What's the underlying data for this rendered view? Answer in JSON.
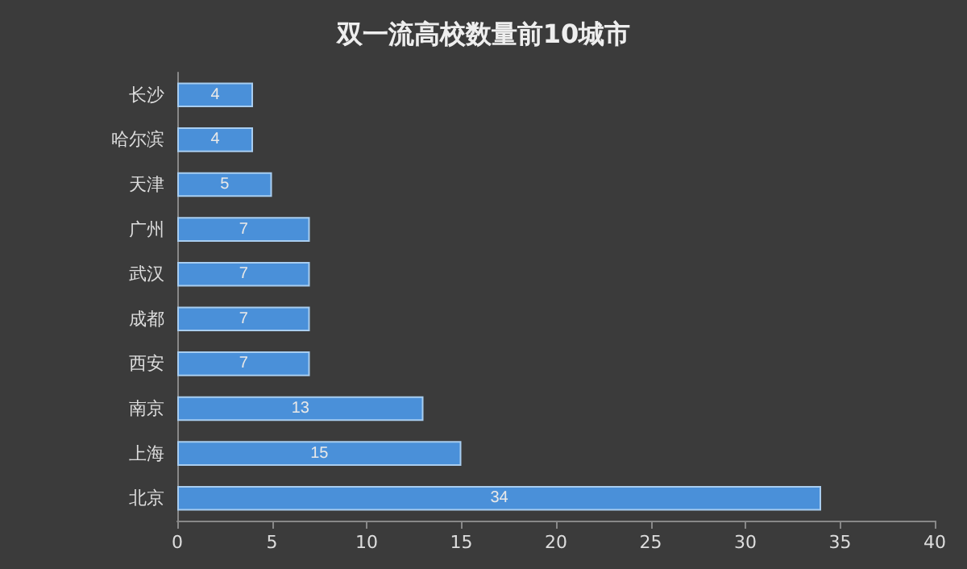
{
  "chart_data": {
    "type": "bar",
    "title": "双一流高校数量前10城市",
    "orientation": "horizontal",
    "categories": [
      "长沙",
      "哈尔滨",
      "天津",
      "广州",
      "武汉",
      "成都",
      "西安",
      "南京",
      "上海",
      "北京"
    ],
    "values": [
      4,
      4,
      5,
      7,
      7,
      7,
      7,
      13,
      15,
      34
    ],
    "color": "#4a90d9",
    "xlim": [
      0,
      40
    ],
    "xticks": [
      0,
      5,
      10,
      15,
      20,
      25,
      30,
      35,
      40
    ],
    "grid": false,
    "data_labels": true
  }
}
